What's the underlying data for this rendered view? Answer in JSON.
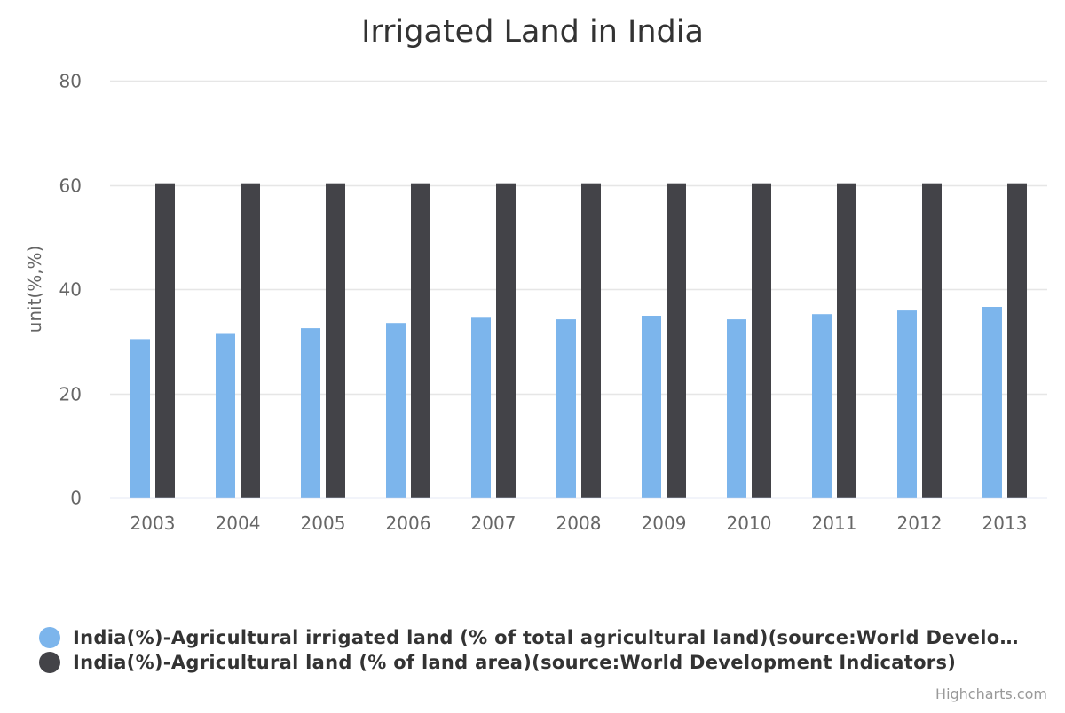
{
  "chart_data": {
    "type": "bar",
    "title": "Irrigated Land in India",
    "xlabel": "",
    "ylabel": "unit(%,%)",
    "categories": [
      "2003",
      "2004",
      "2005",
      "2006",
      "2007",
      "2008",
      "2009",
      "2010",
      "2011",
      "2012",
      "2013"
    ],
    "ylim": [
      0,
      80
    ],
    "yticks": [
      0,
      20,
      40,
      60,
      80
    ],
    "grid": true,
    "legend_position": "bottom-left",
    "series": [
      {
        "name": "India(%)-Agricultural irrigated land (% of total agricultural land)(source:World Development Indicators)",
        "display_name": "India(%)-Agricultural irrigated land (% of total agricultural land)(source:World Develo…",
        "color": "#7cb5ec",
        "values": [
          30.4,
          31.4,
          32.5,
          33.5,
          34.5,
          34.2,
          34.9,
          34.2,
          35.2,
          35.9,
          36.6
        ]
      },
      {
        "name": "India(%)-Agricultural land (% of land area)(source:World Development Indicators)",
        "display_name": "India(%)-Agricultural land (% of land area)(source:World Development Indicators)",
        "color": "#434348",
        "values": [
          60.3,
          60.3,
          60.3,
          60.3,
          60.3,
          60.3,
          60.3,
          60.3,
          60.3,
          60.3,
          60.3
        ]
      }
    ]
  },
  "credits": "Highcharts.com"
}
